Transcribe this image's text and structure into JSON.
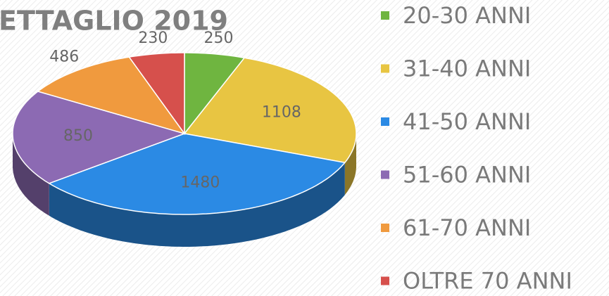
{
  "chart_data": {
    "type": "pie3d",
    "title": "ETTAGLIO 2019",
    "categories": [
      "20-30 ANNI",
      "31-40 ANNI",
      "41-50 ANNI",
      "51-60 ANNI",
      "61-70 ANNI",
      "OLTRE 70 ANNI"
    ],
    "values": [
      250,
      1108,
      1480,
      850,
      486,
      230
    ],
    "colors": [
      "#6fb540",
      "#e8c542",
      "#2b8ae4",
      "#8c6ab3",
      "#f09a3e",
      "#d6504c"
    ],
    "legend": "right"
  }
}
